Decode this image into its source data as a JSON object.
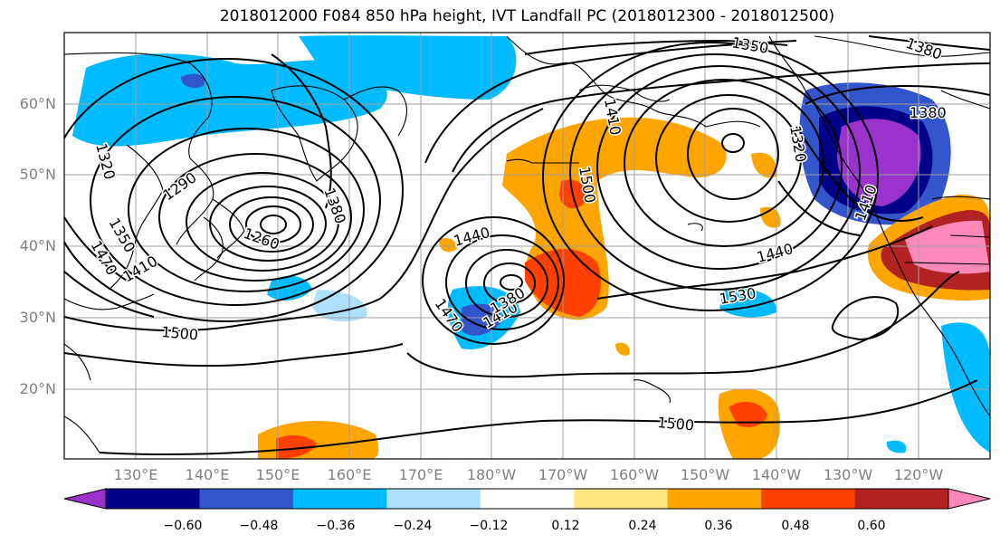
{
  "title": "2018012000 F084 850 hPa height, IVT Landfall PC (2018012300 - 2018012500)",
  "lat_labels": [
    "60°N",
    "50°N",
    "40°N",
    "30°N",
    "20°N"
  ],
  "lon_labels": [
    "130°E",
    "140°E",
    "150°E",
    "160°E",
    "170°E",
    "180°W",
    "170°W",
    "160°W",
    "150°W",
    "140°W",
    "130°W",
    "120°W"
  ],
  "colorbar": {
    "ticks": [
      "−0.60",
      "−0.48",
      "−0.36",
      "−0.24",
      "−0.12",
      "0.12",
      "0.24",
      "0.36",
      "0.48",
      "0.60"
    ],
    "colors": [
      "#9933cc",
      "#000088",
      "#3355cc",
      "#00bbff",
      "#b0e0ff",
      "#ffffff",
      "#ffe680",
      "#ffa500",
      "#ff4000",
      "#b22222",
      "#ff88bb"
    ]
  },
  "contour_labels": [
    {
      "text": "1350"
    },
    {
      "text": "1380"
    },
    {
      "text": "1380"
    },
    {
      "text": "1410"
    },
    {
      "text": "1320"
    },
    {
      "text": "1320"
    },
    {
      "text": "1290"
    },
    {
      "text": "1380"
    },
    {
      "text": "1260"
    },
    {
      "text": "1440"
    },
    {
      "text": "1500"
    },
    {
      "text": "1440"
    },
    {
      "text": "1530"
    },
    {
      "text": "1500"
    },
    {
      "text": "1500"
    },
    {
      "text": "1470"
    },
    {
      "text": "1410"
    },
    {
      "text": "1380"
    },
    {
      "text": "1350"
    },
    {
      "text": "1410"
    },
    {
      "text": "1470"
    },
    {
      "text": "1410"
    }
  ]
}
